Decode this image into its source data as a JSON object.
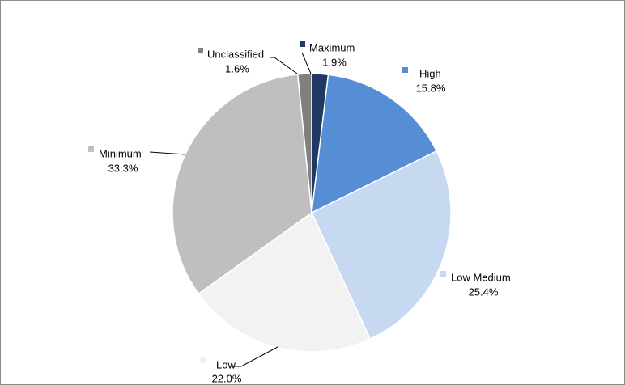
{
  "chart_data": {
    "type": "pie",
    "title": "",
    "legend": "none",
    "start_angle_deg": 0,
    "direction": "clockwise",
    "slices": [
      {
        "label": "Maximum",
        "value": 1.9,
        "percent_label": "1.9%",
        "color": "#1f3864",
        "leader": true
      },
      {
        "label": "High",
        "value": 15.8,
        "percent_label": "15.8%",
        "color": "#558ed5",
        "leader": false
      },
      {
        "label": "Low Medium",
        "value": 25.4,
        "percent_label": "25.4%",
        "color": "#c6d9f1",
        "leader": false
      },
      {
        "label": "Low",
        "value": 22.0,
        "percent_label": "22.0%",
        "color": "#f2f2f2",
        "leader": true
      },
      {
        "label": "Minimum",
        "value": 33.3,
        "percent_label": "33.3%",
        "color": "#bfbfbf",
        "leader": true
      },
      {
        "label": "Unclassified",
        "value": 1.6,
        "percent_label": "1.6%",
        "color": "#808080",
        "leader": true
      }
    ]
  }
}
